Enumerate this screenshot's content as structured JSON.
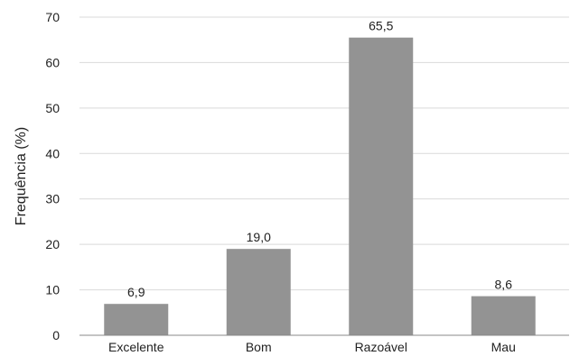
{
  "chart_data": {
    "type": "bar",
    "title": "",
    "xlabel": "",
    "ylabel": "Frequência (%)",
    "categories": [
      "Excelente",
      "Bom",
      "Razoável",
      "Mau"
    ],
    "values": [
      6.9,
      19.0,
      65.5,
      8.6
    ],
    "value_labels": [
      "6,9",
      "19,0",
      "65,5",
      "8,6"
    ],
    "ylim": [
      0,
      70
    ],
    "yticks": [
      0,
      10,
      20,
      30,
      40,
      50,
      60,
      70
    ],
    "grid": true,
    "legend": "none",
    "bar_color": "#939393"
  }
}
